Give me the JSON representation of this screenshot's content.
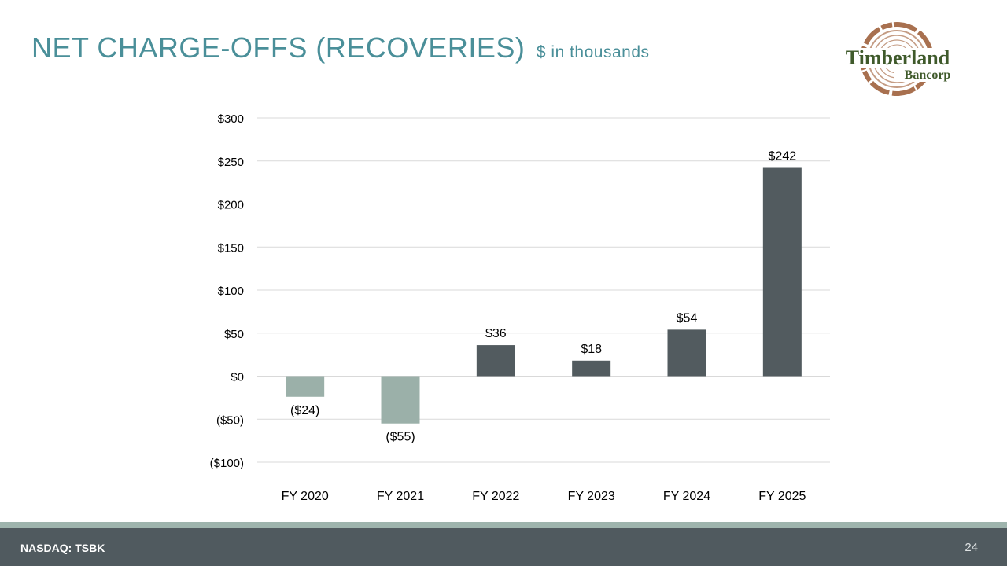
{
  "header": {
    "title": "NET CHARGE-OFFS (RECOVERIES)",
    "subtitle": "$ in thousands"
  },
  "logo": {
    "word1": "Timberland",
    "word2": "Bancorp",
    "ring_color": "#a8704f",
    "text_color": "#3f5a2b"
  },
  "chart_data": {
    "type": "bar",
    "title": "NET CHARGE-OFFS (RECOVERIES)",
    "subtitle": "$ in thousands",
    "xlabel": "",
    "ylabel": "",
    "ylim": [
      -100,
      300
    ],
    "yticks": [
      300,
      250,
      200,
      150,
      100,
      50,
      0,
      -50,
      -100
    ],
    "ytick_labels": [
      "$300",
      "$250",
      "$200",
      "$150",
      "$100",
      "$50",
      "$0",
      "($50)",
      "($100)"
    ],
    "categories": [
      "FY 2020",
      "FY 2021",
      "FY 2022",
      "FY 2023",
      "FY 2024",
      "FY 2025"
    ],
    "values": [
      -24,
      -55,
      36,
      18,
      54,
      242
    ],
    "value_labels": [
      "($24)",
      "($55)",
      "$36",
      "$18",
      "$54",
      "$242"
    ],
    "grid": true,
    "positive_color": "#525b5f",
    "negative_color": "#9bb0a9"
  },
  "footer": {
    "ticker": "NASDAQ: TSBK",
    "page_number": "24"
  }
}
